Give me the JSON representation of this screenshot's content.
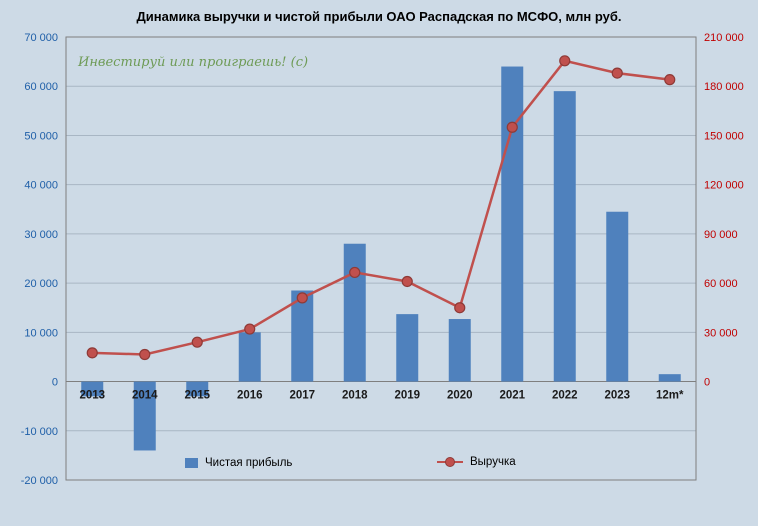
{
  "title": "Динамика выручки и чистой прибыли ОАО Распадская по МСФО, млн руб.",
  "watermark": "Инвестируй или проиграешь! (с)",
  "colors": {
    "background": "#cddae6",
    "plot_border": "#7f7f7f",
    "gridline": "#a8b6c4",
    "zero_axis": "#7f7f7f",
    "bar": "#4f81bd",
    "line": "#c0504d",
    "marker_stroke": "#8e3a37",
    "left_axis_text": "#1f5fa8",
    "right_axis_text": "#c00000",
    "category_text": "#1a1a1a",
    "title_text": "#000000",
    "watermark_text": "#6e9b56"
  },
  "chart_data": {
    "type": "bar",
    "subtype": "bar+line combo, dual axis",
    "title": "Динамика выручки и чистой прибыли ОАО Распадская по МСФО, млн руб.",
    "categories": [
      "2013",
      "2014",
      "2015",
      "2016",
      "2017",
      "2018",
      "2019",
      "2020",
      "2021",
      "2022",
      "2023",
      "12m*"
    ],
    "series": [
      {
        "name": "Чистая прибыль",
        "type": "bar",
        "axis": "left",
        "color": "#4f81bd",
        "values": [
          -3000,
          -14000,
          -3000,
          10000,
          18500,
          28000,
          13700,
          12700,
          64000,
          59000,
          34500,
          1500
        ]
      },
      {
        "name": "Выручка",
        "type": "line",
        "axis": "right",
        "color": "#c0504d",
        "marker_stroke": "#8e3a37",
        "values": [
          17500,
          16500,
          24000,
          32000,
          51000,
          66500,
          61000,
          45000,
          155000,
          195500,
          188000,
          184000
        ]
      }
    ],
    "left_axis": {
      "min": -20000,
      "max": 70000,
      "step": 10000,
      "tick_values": [
        70000,
        60000,
        50000,
        40000,
        30000,
        20000,
        10000,
        0,
        -10000,
        -20000
      ],
      "tick_labels": [
        "70 000",
        "60 000",
        "50 000",
        "40 000",
        "30 000",
        "20 000",
        "10 000",
        "0",
        "-10 000",
        "-20 000"
      ]
    },
    "right_axis": {
      "min": 0,
      "max": 210000,
      "step": 30000,
      "tick_values": [
        210000,
        180000,
        150000,
        120000,
        90000,
        60000,
        30000,
        0
      ],
      "tick_labels": [
        "210 000",
        "180 000",
        "150 000",
        "120 000",
        "90 000",
        "60 000",
        "30 000",
        "0"
      ]
    },
    "grid": true,
    "legend_position": "bottom-inside"
  }
}
